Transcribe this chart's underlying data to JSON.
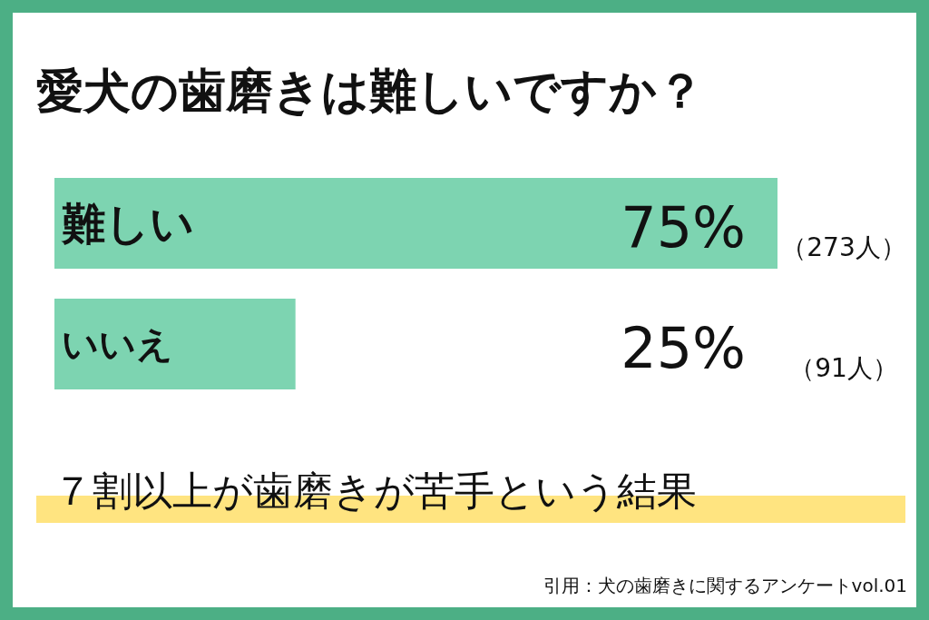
{
  "chart_data": {
    "type": "bar",
    "orientation": "horizontal",
    "title": "愛犬の歯磨きは難しいですか？",
    "categories": [
      "難しい",
      "いいえ"
    ],
    "values": [
      75,
      25
    ],
    "value_labels": [
      "75%",
      "25%"
    ],
    "color": "#7dd4b1",
    "annotations": [
      "（273人）",
      "（91人）",
      "７割以上が歯磨きが苦手という結果",
      "引用：犬の歯磨きに関するアンケートvol.01"
    ]
  }
}
